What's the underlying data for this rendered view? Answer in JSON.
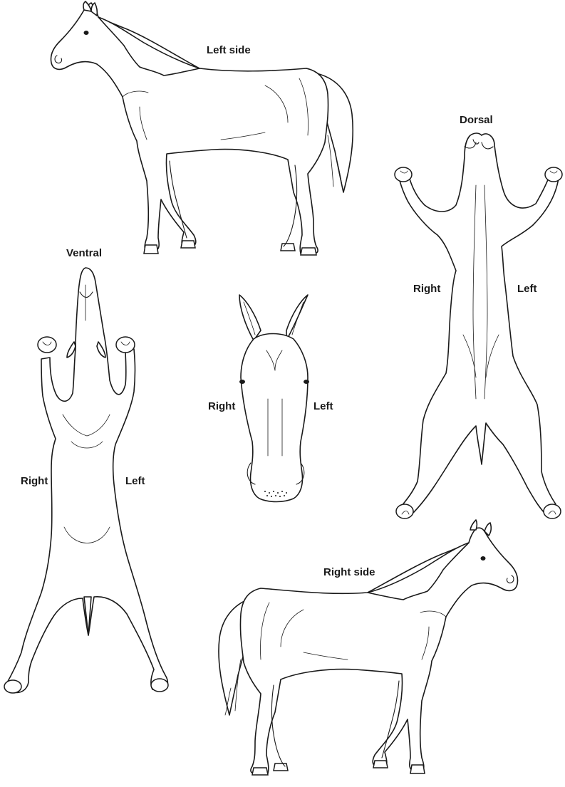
{
  "diagram": {
    "views": {
      "left_side": {
        "label": "Left side"
      },
      "right_side": {
        "label": "Right side"
      },
      "dorsal": {
        "label": "Dorsal",
        "right": "Right",
        "left": "Left"
      },
      "ventral": {
        "label": "Ventral",
        "right": "Right",
        "left": "Left"
      },
      "front": {
        "right": "Right",
        "left": "Left"
      }
    }
  }
}
